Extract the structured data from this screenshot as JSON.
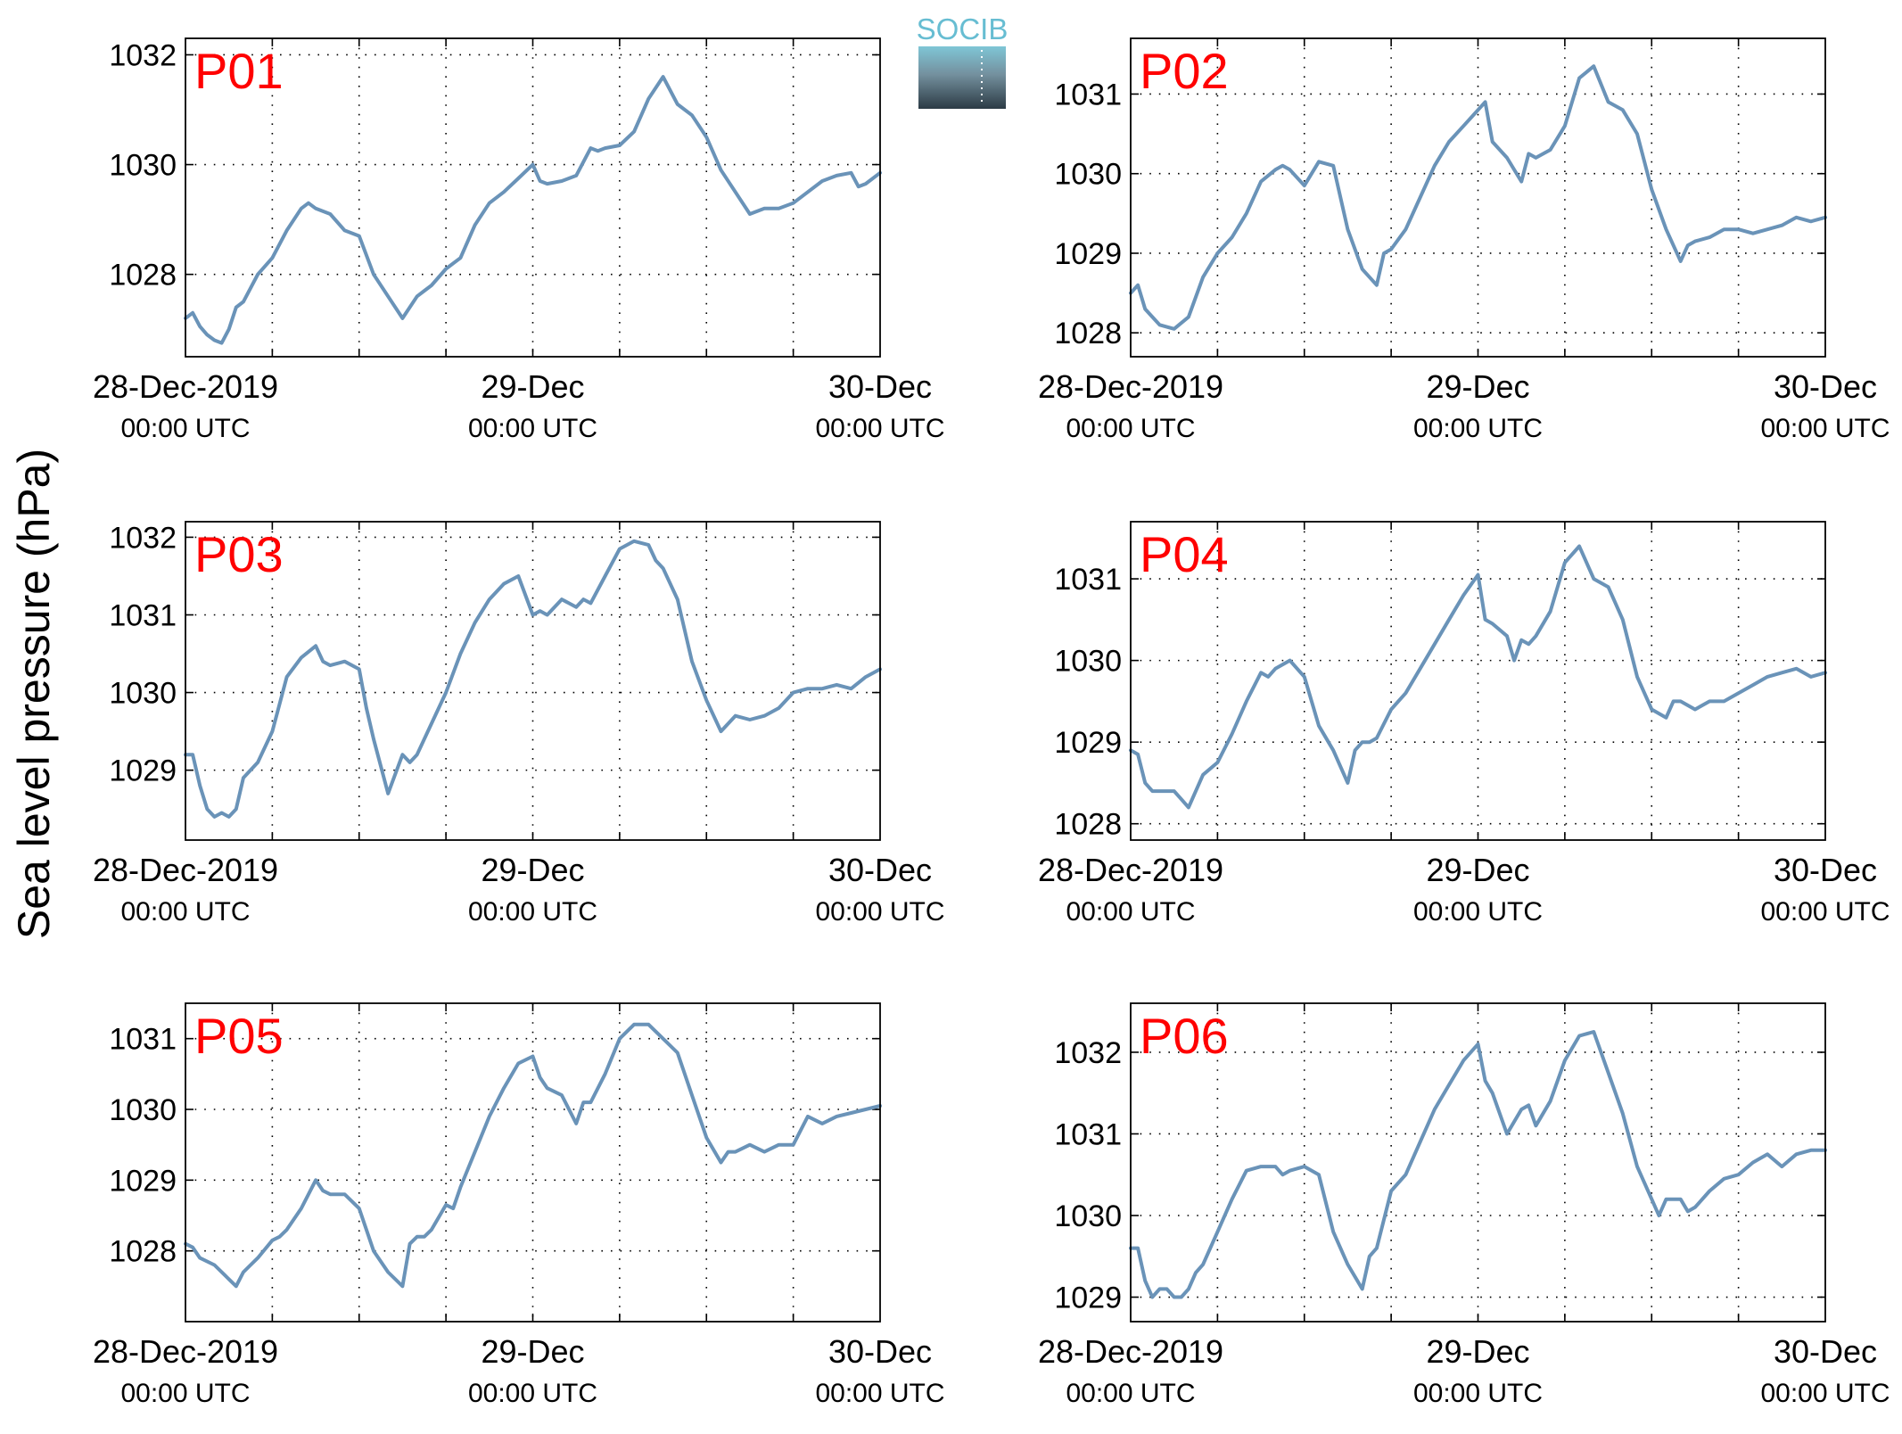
{
  "figure": {
    "ylabel": "Sea level pressure (hPa)",
    "logo_text": "SOCIB",
    "x_tick_labels": [
      {
        "date": "28-Dec-2019",
        "time": "00:00 UTC"
      },
      {
        "date": "29-Dec",
        "time": "00:00 UTC"
      },
      {
        "date": "30-Dec",
        "time": "00:00 UTC"
      }
    ],
    "line_color": "#6a93b8",
    "panel_label_color": "#ff0000"
  },
  "chart_data": [
    {
      "type": "line",
      "panel_label": "P01",
      "x_unit": "hours since 28-Dec-2019 00:00 UTC",
      "xlim": [
        0,
        48
      ],
      "ylim": [
        1026.5,
        1032.3
      ],
      "yticks": [
        1028,
        1030,
        1032
      ],
      "grid": true,
      "x": [
        0,
        0.5,
        1,
        1.5,
        2,
        2.5,
        3,
        3.5,
        4,
        5,
        6,
        7,
        8,
        8.5,
        9,
        10,
        11,
        12,
        13,
        14,
        15,
        16,
        16.5,
        17,
        18,
        19,
        20,
        21,
        22,
        23,
        24,
        24.5,
        25,
        26,
        27,
        28,
        28.5,
        29,
        30,
        31,
        32,
        33,
        34,
        35,
        36,
        37,
        38,
        39,
        40,
        41,
        42,
        43,
        44,
        45,
        46,
        46.5,
        47,
        48
      ],
      "y": [
        1027.2,
        1027.3,
        1027.05,
        1026.9,
        1026.8,
        1026.75,
        1027.0,
        1027.4,
        1027.5,
        1028.0,
        1028.3,
        1028.8,
        1029.2,
        1029.3,
        1029.2,
        1029.1,
        1028.8,
        1028.7,
        1028.0,
        1027.6,
        1027.2,
        1027.6,
        1027.7,
        1027.8,
        1028.1,
        1028.3,
        1028.9,
        1029.3,
        1029.5,
        1029.75,
        1030.0,
        1029.7,
        1029.65,
        1029.7,
        1029.8,
        1030.3,
        1030.25,
        1030.3,
        1030.35,
        1030.6,
        1031.2,
        1031.6,
        1031.1,
        1030.9,
        1030.5,
        1029.9,
        1029.5,
        1029.1,
        1029.2,
        1029.2,
        1029.3,
        1029.5,
        1029.7,
        1029.8,
        1029.85,
        1029.6,
        1029.65,
        1029.85
      ]
    },
    {
      "type": "line",
      "panel_label": "P02",
      "x_unit": "hours since 28-Dec-2019 00:00 UTC",
      "xlim": [
        0,
        48
      ],
      "ylim": [
        1027.7,
        1031.7
      ],
      "yticks": [
        1028,
        1029,
        1030,
        1031
      ],
      "grid": true,
      "x": [
        0,
        0.5,
        1,
        1.5,
        2,
        3,
        4,
        5,
        6,
        7,
        8,
        9,
        10,
        10.5,
        11,
        12,
        12.5,
        13,
        14,
        15,
        16,
        17,
        17.5,
        18,
        19,
        20,
        21,
        22,
        23,
        24,
        24.5,
        25,
        26,
        27,
        27.5,
        28,
        29,
        30,
        31,
        32,
        33,
        34,
        35,
        36,
        37,
        38,
        38.5,
        39,
        40,
        41,
        42,
        43,
        44,
        45,
        46,
        47,
        48
      ],
      "y": [
        1028.5,
        1028.6,
        1028.3,
        1028.2,
        1028.1,
        1028.05,
        1028.2,
        1028.7,
        1029.0,
        1029.2,
        1029.5,
        1029.9,
        1030.05,
        1030.1,
        1030.05,
        1029.85,
        1030.0,
        1030.15,
        1030.1,
        1029.3,
        1028.8,
        1028.6,
        1029.0,
        1029.05,
        1029.3,
        1029.7,
        1030.1,
        1030.4,
        1030.6,
        1030.8,
        1030.9,
        1030.4,
        1030.2,
        1029.9,
        1030.25,
        1030.2,
        1030.3,
        1030.6,
        1031.2,
        1031.35,
        1030.9,
        1030.8,
        1030.5,
        1029.8,
        1029.3,
        1028.9,
        1029.1,
        1029.15,
        1029.2,
        1029.3,
        1029.3,
        1029.25,
        1029.3,
        1029.35,
        1029.45,
        1029.4,
        1029.45
      ]
    },
    {
      "type": "line",
      "panel_label": "P03",
      "x_unit": "hours since 28-Dec-2019 00:00 UTC",
      "xlim": [
        0,
        48
      ],
      "ylim": [
        1028.1,
        1032.2
      ],
      "yticks": [
        1029,
        1030,
        1031,
        1032
      ],
      "grid": true,
      "x": [
        0,
        0.5,
        1,
        1.5,
        2,
        2.5,
        3,
        3.5,
        4,
        5,
        6,
        7,
        8,
        9,
        9.5,
        10,
        11,
        12,
        12.5,
        13,
        14,
        15,
        15.5,
        16,
        17,
        18,
        19,
        20,
        21,
        22,
        23,
        24,
        24.5,
        25,
        26,
        27,
        27.5,
        28,
        29,
        30,
        31,
        32,
        32.5,
        33,
        34,
        35,
        36,
        37,
        38,
        39,
        40,
        41,
        42,
        43,
        44,
        45,
        46,
        47,
        48
      ],
      "y": [
        1029.2,
        1029.2,
        1028.8,
        1028.5,
        1028.4,
        1028.45,
        1028.4,
        1028.5,
        1028.9,
        1029.1,
        1029.5,
        1030.2,
        1030.45,
        1030.6,
        1030.4,
        1030.35,
        1030.4,
        1030.3,
        1029.8,
        1029.4,
        1028.7,
        1029.2,
        1029.1,
        1029.2,
        1029.6,
        1030.0,
        1030.5,
        1030.9,
        1031.2,
        1031.4,
        1031.5,
        1031.0,
        1031.05,
        1031.0,
        1031.2,
        1031.1,
        1031.2,
        1031.15,
        1031.5,
        1031.85,
        1031.95,
        1031.9,
        1031.7,
        1031.6,
        1031.2,
        1030.4,
        1029.9,
        1029.5,
        1029.7,
        1029.65,
        1029.7,
        1029.8,
        1030.0,
        1030.05,
        1030.05,
        1030.1,
        1030.05,
        1030.2,
        1030.3
      ]
    },
    {
      "type": "line",
      "panel_label": "P04",
      "x_unit": "hours since 28-Dec-2019 00:00 UTC",
      "xlim": [
        0,
        48
      ],
      "ylim": [
        1027.8,
        1031.7
      ],
      "yticks": [
        1028,
        1029,
        1030,
        1031
      ],
      "grid": true,
      "x": [
        0,
        0.5,
        1,
        1.5,
        2,
        3,
        3.5,
        4,
        5,
        6,
        7,
        8,
        9,
        9.5,
        10,
        11,
        12,
        13,
        14,
        15,
        15.5,
        16,
        16.5,
        17,
        18,
        19,
        20,
        21,
        22,
        23,
        24,
        24.5,
        25,
        26,
        26.5,
        27,
        27.5,
        28,
        29,
        30,
        31,
        32,
        33,
        34,
        35,
        36,
        37,
        37.5,
        38,
        39,
        40,
        41,
        42,
        43,
        44,
        45,
        46,
        47,
        48
      ],
      "y": [
        1028.9,
        1028.85,
        1028.5,
        1028.4,
        1028.4,
        1028.4,
        1028.3,
        1028.2,
        1028.6,
        1028.75,
        1029.1,
        1029.5,
        1029.85,
        1029.8,
        1029.9,
        1030.0,
        1029.8,
        1029.2,
        1028.9,
        1028.5,
        1028.9,
        1029.0,
        1029.0,
        1029.05,
        1029.4,
        1029.6,
        1029.9,
        1030.2,
        1030.5,
        1030.8,
        1031.05,
        1030.5,
        1030.45,
        1030.3,
        1030.0,
        1030.25,
        1030.2,
        1030.3,
        1030.6,
        1031.2,
        1031.4,
        1031.0,
        1030.9,
        1030.5,
        1029.8,
        1029.4,
        1029.3,
        1029.5,
        1029.5,
        1029.4,
        1029.5,
        1029.5,
        1029.6,
        1029.7,
        1029.8,
        1029.85,
        1029.9,
        1029.8,
        1029.85
      ]
    },
    {
      "type": "line",
      "panel_label": "P05",
      "x_unit": "hours since 28-Dec-2019 00:00 UTC",
      "xlim": [
        0,
        48
      ],
      "ylim": [
        1027.0,
        1031.5
      ],
      "yticks": [
        1028,
        1029,
        1030,
        1031
      ],
      "grid": true,
      "x": [
        0,
        0.5,
        1,
        2,
        3,
        3.5,
        4,
        4.5,
        5,
        6,
        6.5,
        7,
        8,
        9,
        9.5,
        10,
        11,
        12,
        13,
        14,
        15,
        15.5,
        16,
        16.5,
        17,
        18,
        18.5,
        19,
        20,
        21,
        22,
        23,
        24,
        24.5,
        25,
        26,
        27,
        27.5,
        28,
        29,
        30,
        31,
        32,
        33,
        34,
        35,
        36,
        37,
        37.5,
        38,
        39,
        40,
        41,
        42,
        43,
        44,
        45,
        46,
        47,
        48
      ],
      "y": [
        1028.1,
        1028.05,
        1027.9,
        1027.8,
        1027.6,
        1027.5,
        1027.7,
        1027.8,
        1027.9,
        1028.15,
        1028.2,
        1028.3,
        1028.6,
        1029.0,
        1028.85,
        1028.8,
        1028.8,
        1028.6,
        1028.0,
        1027.7,
        1027.5,
        1028.1,
        1028.2,
        1028.2,
        1028.3,
        1028.65,
        1028.6,
        1028.9,
        1029.4,
        1029.9,
        1030.3,
        1030.65,
        1030.75,
        1030.45,
        1030.3,
        1030.2,
        1029.8,
        1030.1,
        1030.1,
        1030.5,
        1031.0,
        1031.2,
        1031.2,
        1031.0,
        1030.8,
        1030.2,
        1029.6,
        1029.25,
        1029.4,
        1029.4,
        1029.5,
        1029.4,
        1029.5,
        1029.5,
        1029.9,
        1029.8,
        1029.9,
        1029.95,
        1030.0,
        1030.05
      ]
    },
    {
      "type": "line",
      "panel_label": "P06",
      "x_unit": "hours since 28-Dec-2019 00:00 UTC",
      "xlim": [
        0,
        48
      ],
      "ylim": [
        1028.7,
        1032.6
      ],
      "yticks": [
        1029,
        1030,
        1031,
        1032
      ],
      "grid": true,
      "x": [
        0,
        0.5,
        1,
        1.5,
        2,
        2.5,
        3,
        3.5,
        4,
        4.5,
        5,
        6,
        7,
        8,
        9,
        10,
        10.5,
        11,
        12,
        13,
        14,
        15,
        16,
        16.5,
        17,
        18,
        19,
        20,
        21,
        22,
        23,
        24,
        24.5,
        25,
        26,
        27,
        27.5,
        28,
        29,
        30,
        31,
        32,
        33,
        34,
        35,
        36,
        36.5,
        37,
        38,
        38.5,
        39,
        40,
        41,
        42,
        43,
        44,
        45,
        46,
        47,
        48
      ],
      "y": [
        1029.6,
        1029.6,
        1029.2,
        1029.0,
        1029.1,
        1029.1,
        1029.0,
        1029.0,
        1029.1,
        1029.3,
        1029.4,
        1029.8,
        1030.2,
        1030.55,
        1030.6,
        1030.6,
        1030.5,
        1030.55,
        1030.6,
        1030.5,
        1029.8,
        1029.4,
        1029.1,
        1029.5,
        1029.6,
        1030.3,
        1030.5,
        1030.9,
        1031.3,
        1031.6,
        1031.9,
        1032.1,
        1031.65,
        1031.5,
        1031.0,
        1031.3,
        1031.35,
        1031.1,
        1031.4,
        1031.9,
        1032.2,
        1032.25,
        1031.75,
        1031.25,
        1030.6,
        1030.2,
        1030.0,
        1030.2,
        1030.2,
        1030.05,
        1030.1,
        1030.3,
        1030.45,
        1030.5,
        1030.65,
        1030.75,
        1030.6,
        1030.75,
        1030.8,
        1030.8
      ]
    }
  ]
}
